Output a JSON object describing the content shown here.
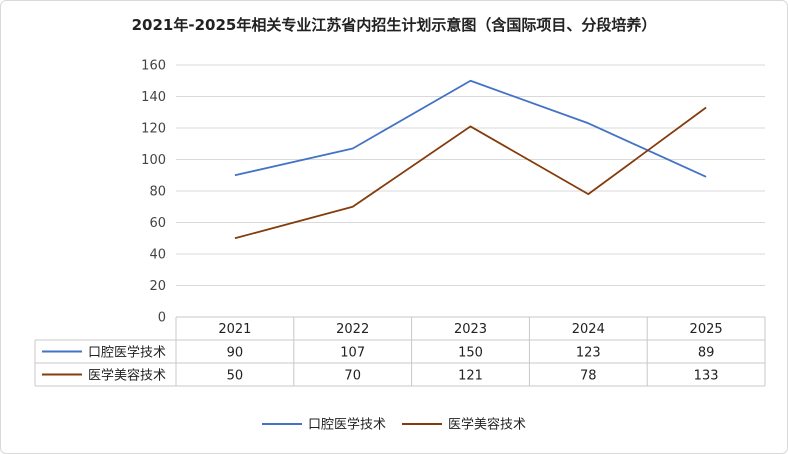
{
  "chart_data": {
    "type": "line",
    "title": "2021年-2025年相关专业江苏省内招生计划示意图（含国际项目、分段培养）",
    "categories": [
      "2021",
      "2022",
      "2023",
      "2024",
      "2025"
    ],
    "series": [
      {
        "name": "口腔医学技术",
        "values": [
          90,
          107,
          150,
          123,
          89
        ],
        "color": "#4472C4"
      },
      {
        "name": "医学美容技术",
        "values": [
          50,
          70,
          121,
          78,
          133
        ],
        "color": "#843C0C"
      }
    ],
    "ylim": [
      0,
      160
    ],
    "yticks": [
      0,
      20,
      40,
      60,
      80,
      100,
      120,
      140,
      160
    ],
    "grid": true,
    "data_table": true,
    "legend_position": "bottom"
  }
}
